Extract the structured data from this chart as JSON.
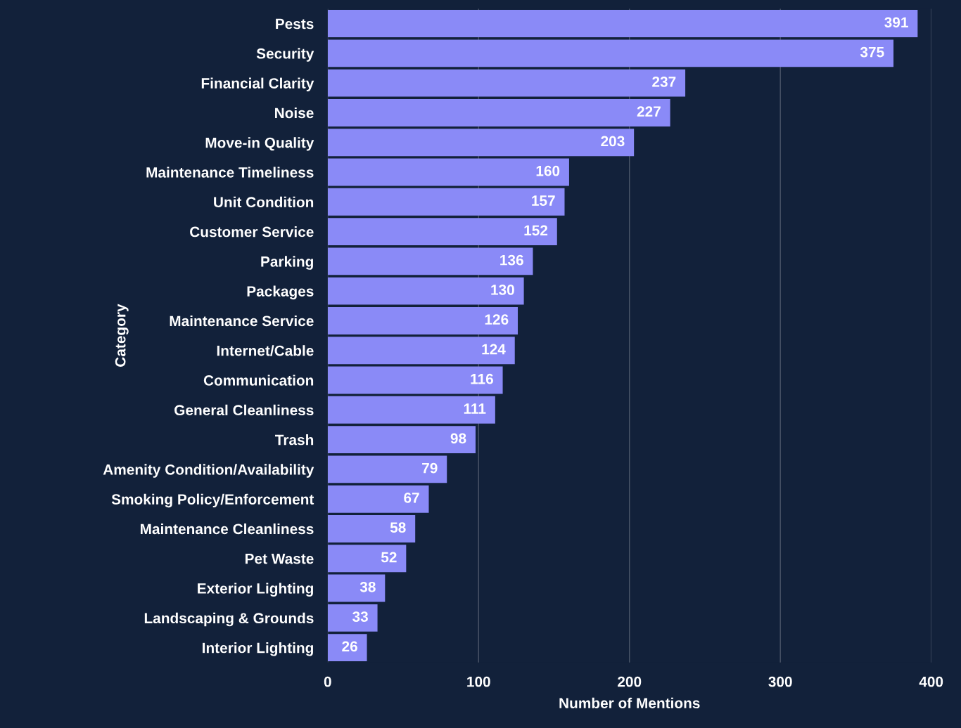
{
  "chart_data": {
    "type": "bar",
    "orientation": "horizontal",
    "xlabel": "Number of Mentions",
    "ylabel": "Category",
    "categories": [
      "Pests",
      "Security",
      "Financial Clarity",
      "Noise",
      "Move-in Quality",
      "Maintenance Timeliness",
      "Unit Condition",
      "Customer Service",
      "Parking",
      "Packages",
      "Maintenance Service",
      "Internet/Cable",
      "Communication",
      "General Cleanliness",
      "Trash",
      "Amenity Condition/Availability",
      "Smoking Policy/Enforcement",
      "Maintenance Cleanliness",
      "Pet Waste",
      "Exterior Lighting",
      "Landscaping & Grounds",
      "Interior Lighting"
    ],
    "values": [
      391,
      375,
      237,
      227,
      203,
      160,
      157,
      152,
      136,
      130,
      126,
      124,
      116,
      111,
      98,
      79,
      67,
      58,
      52,
      38,
      33,
      26
    ],
    "color": "#8a8af7",
    "xlim": [
      0,
      400
    ],
    "xticks": [
      0,
      100,
      200,
      300,
      400
    ],
    "grid": "x",
    "data_labels": true
  }
}
